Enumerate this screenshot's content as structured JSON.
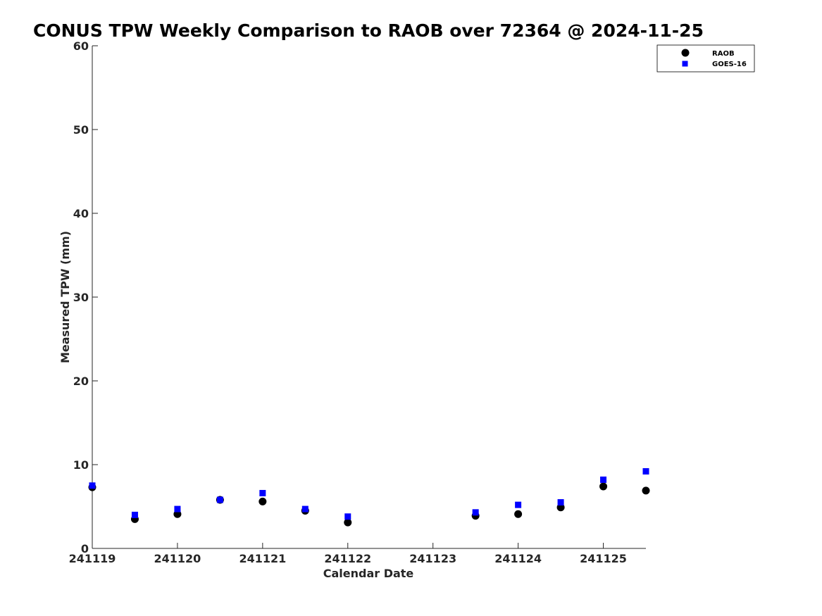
{
  "chart_data": {
    "type": "scatter",
    "title": "CONUS TPW Weekly Comparison to RAOB over 72364 @ 2024-11-25",
    "xlabel": "Calendar Date",
    "ylabel": "Measured TPW (mm)",
    "xlim": [
      "241119",
      "241125.5"
    ],
    "ylim": [
      0,
      60
    ],
    "x_ticks": [
      "241119",
      "241120",
      "241121",
      "241122",
      "241123",
      "241124",
      "241125"
    ],
    "y_ticks": [
      0,
      10,
      20,
      30,
      40,
      50,
      60
    ],
    "grid": false,
    "legend_position": "top-right",
    "series": [
      {
        "name": "RAOB",
        "marker": "circle",
        "color": "#000000",
        "x": [
          "241119 00Z",
          "241119 12Z",
          "241120 00Z",
          "241120 12Z",
          "241121 00Z",
          "241121 12Z",
          "241122 00Z",
          "241123 12Z",
          "241124 00Z",
          "241124 12Z",
          "241125 00Z",
          "241125 12Z"
        ],
        "y": [
          7.3,
          3.5,
          4.1,
          5.8,
          5.6,
          4.5,
          3.1,
          3.9,
          4.1,
          4.9,
          7.4,
          6.9
        ]
      },
      {
        "name": "GOES-16",
        "marker": "square",
        "color": "#0000ff",
        "x": [
          "241119 00Z",
          "241119 12Z",
          "241120 00Z",
          "241120 12Z",
          "241121 00Z",
          "241121 12Z",
          "241122 00Z",
          "241123 12Z",
          "241124 00Z",
          "241124 12Z",
          "241125 00Z",
          "241125 12Z"
        ],
        "y": [
          7.5,
          4.0,
          4.7,
          5.8,
          6.6,
          4.7,
          3.8,
          4.3,
          5.2,
          5.5,
          8.2,
          9.2
        ]
      }
    ]
  }
}
